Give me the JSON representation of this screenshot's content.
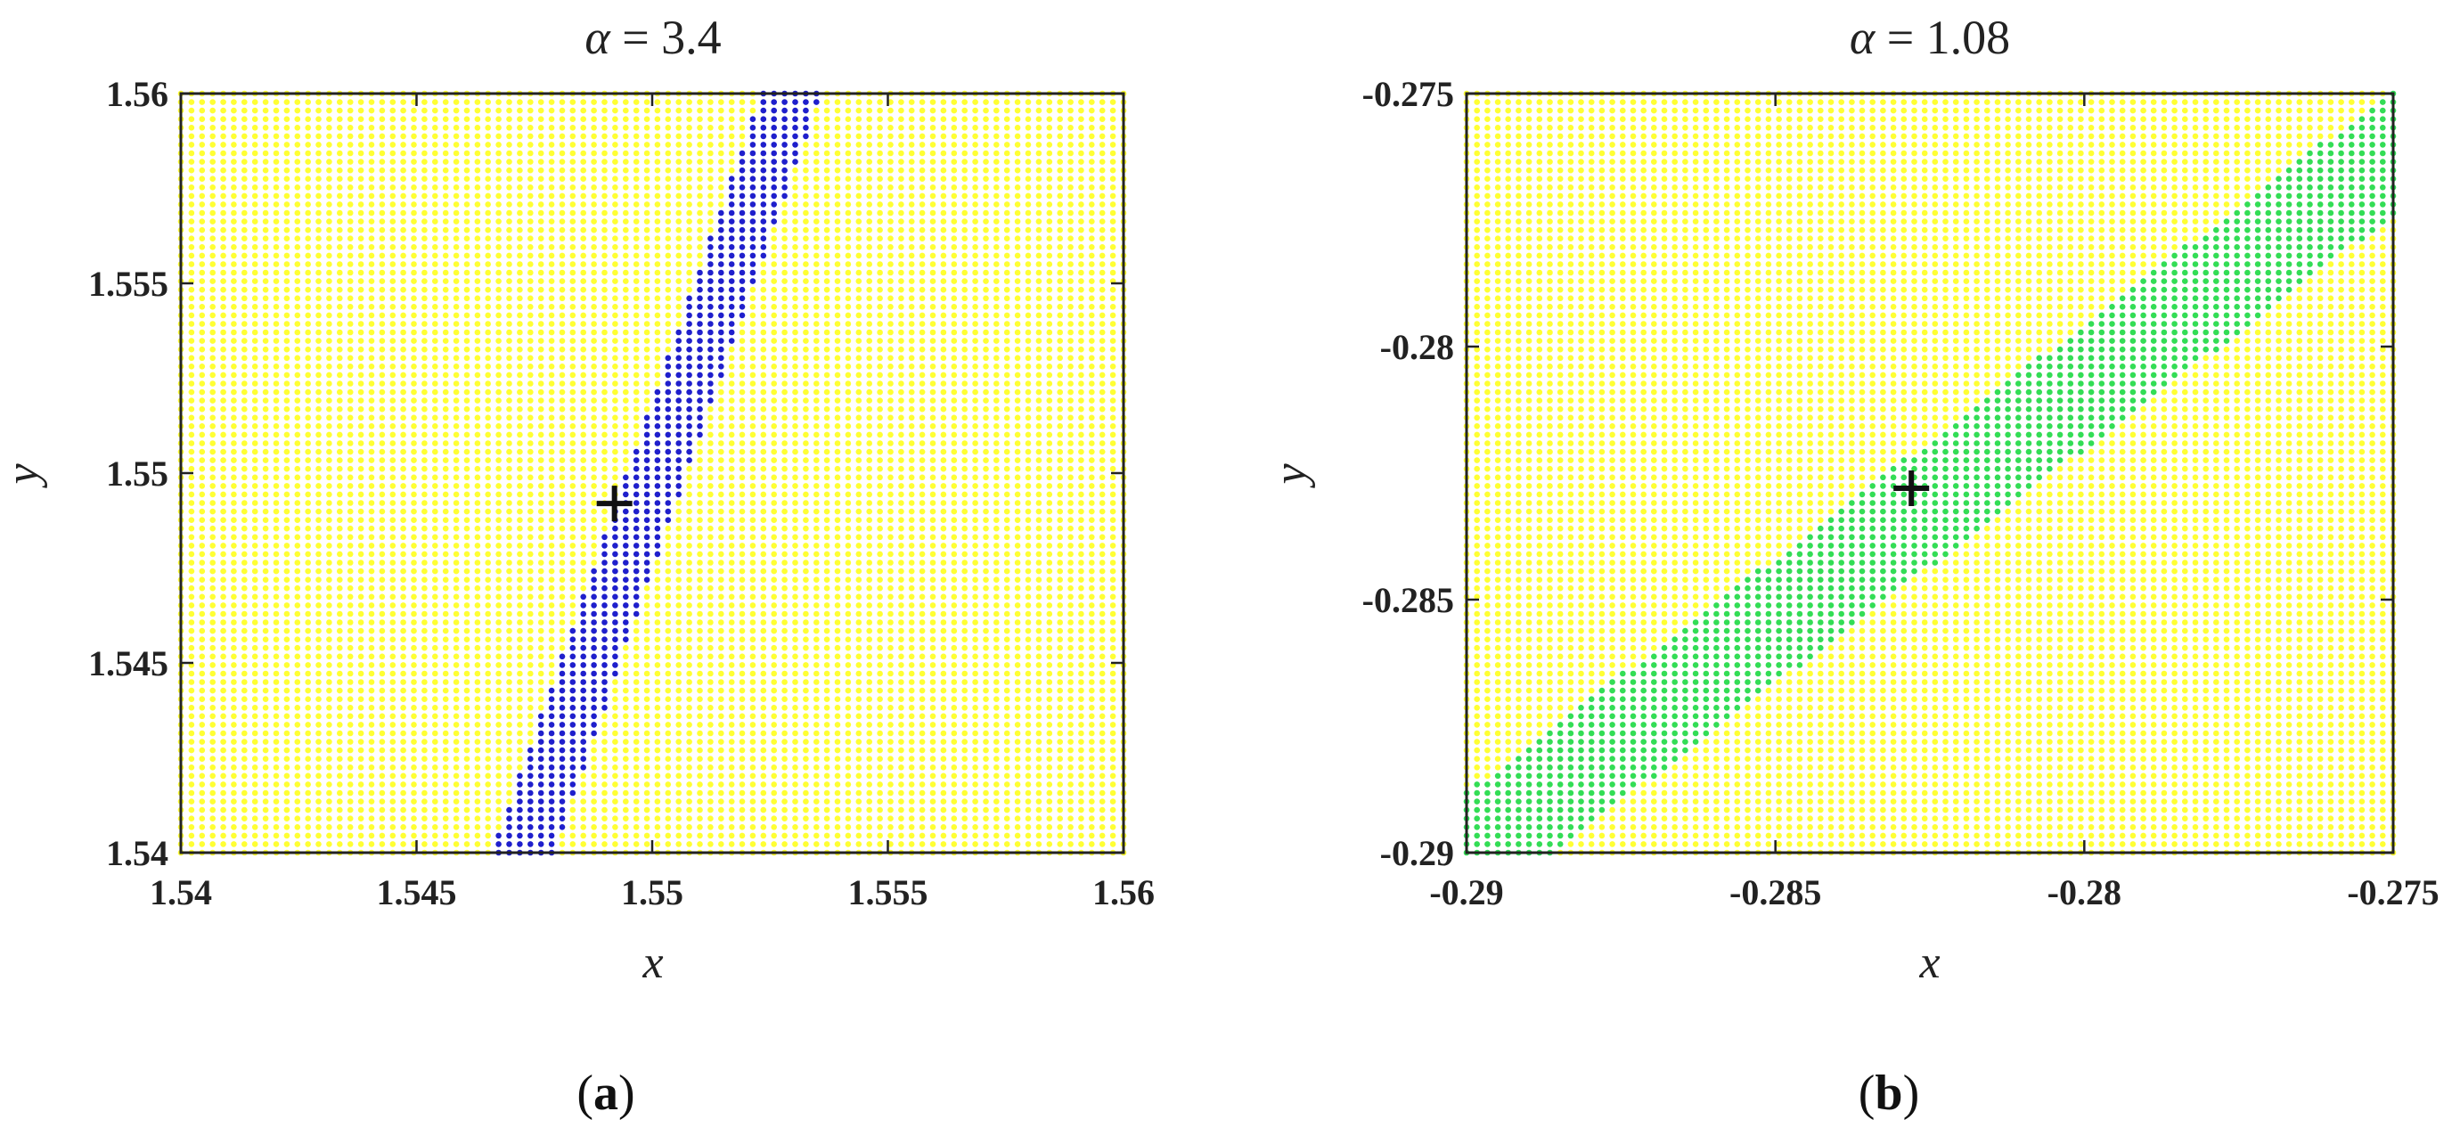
{
  "chart_data": [
    {
      "type": "scatter",
      "panel_label": "(a)",
      "panel_letter": "a",
      "title": {
        "symbol": "α",
        "rest": " = 3.4"
      },
      "xlabel": "x",
      "ylabel": "y",
      "xlim": [
        1.54,
        1.56
      ],
      "ylim": [
        1.54,
        1.56
      ],
      "xticks": [
        "1.54",
        "1.545",
        "1.55",
        "1.555",
        "1.56"
      ],
      "yticks": [
        "1.54",
        "1.545",
        "1.55",
        "1.555",
        "1.56"
      ],
      "grid_points": 90,
      "background_color": "#ffff33",
      "band_color": "#1f1fcc",
      "band": {
        "x_start": 1.5466,
        "y_start": 1.54,
        "x_end": 1.5523,
        "y_end": 1.56,
        "width_x": 0.0013
      },
      "marker": {
        "x": 1.5492,
        "y": 1.5492,
        "symbol": "+"
      }
    },
    {
      "type": "scatter",
      "panel_label": "(b)",
      "panel_letter": "b",
      "title": {
        "symbol": "α",
        "rest": " = 1.08"
      },
      "xlabel": "x",
      "ylabel": "y",
      "xlim": [
        -0.29,
        -0.275
      ],
      "ylim": [
        -0.29,
        -0.275
      ],
      "xticks": [
        "-0.29",
        "-0.285",
        "-0.28",
        "-0.275"
      ],
      "yticks": [
        "-0.29",
        "-0.285",
        "-0.28",
        "-0.275"
      ],
      "grid_points": 90,
      "background_color": "#ffff33",
      "band_color": "#33dd55",
      "band": {
        "x_start": -0.2913,
        "y_start": -0.29,
        "x_end": -0.2751,
        "y_end": -0.275,
        "width_x": 0.0027
      },
      "marker": {
        "x": -0.2828,
        "y": -0.2828,
        "symbol": "+"
      }
    }
  ]
}
